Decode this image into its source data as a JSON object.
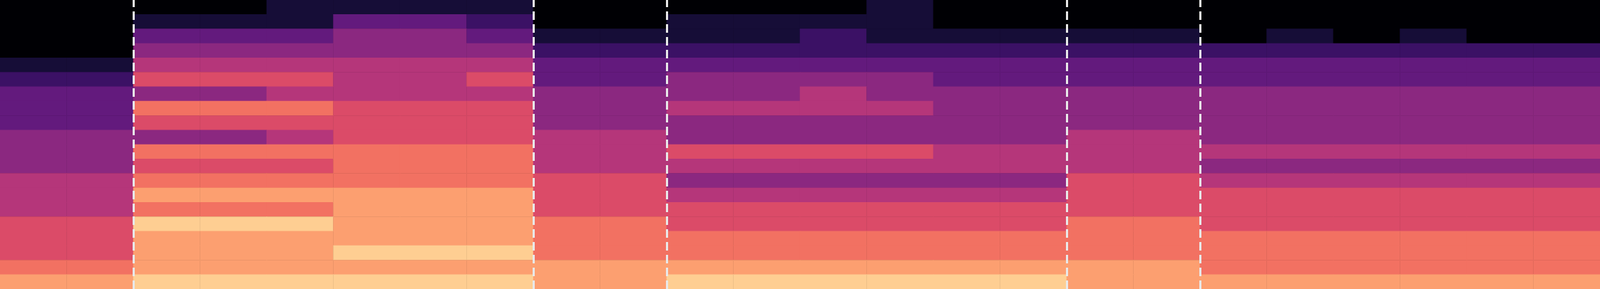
{
  "chart_data": {
    "type": "heatmap",
    "xlim": [
      0,
      24
    ],
    "ylim": [
      0,
      20
    ],
    "tick_labels": false,
    "grid": false,
    "markers": [
      2,
      8,
      10,
      16,
      18
    ],
    "color_range": [
      0,
      10
    ],
    "cells": [
      [
        0,
        0,
        0,
        0,
        1,
        1,
        1,
        1,
        0,
        0,
        0,
        0,
        0,
        1,
        0,
        0,
        0,
        0,
        0,
        0,
        0,
        0,
        0,
        0
      ],
      [
        0,
        0,
        1,
        1,
        1,
        3,
        3,
        2,
        0,
        0,
        1,
        1,
        1,
        1,
        0,
        0,
        0,
        0,
        0,
        0,
        0,
        0,
        0,
        0
      ],
      [
        0,
        0,
        3,
        3,
        3,
        4,
        4,
        3,
        1,
        1,
        1,
        1,
        2,
        1,
        1,
        1,
        1,
        1,
        0,
        1,
        0,
        1,
        0,
        0
      ],
      [
        0,
        0,
        4,
        4,
        4,
        4,
        4,
        4,
        2,
        2,
        2,
        2,
        2,
        2,
        2,
        2,
        2,
        2,
        2,
        2,
        2,
        2,
        2,
        2
      ],
      [
        1,
        1,
        5,
        5,
        5,
        5,
        5,
        5,
        3,
        3,
        3,
        3,
        3,
        3,
        3,
        3,
        3,
        3,
        3,
        3,
        3,
        3,
        3,
        3
      ],
      [
        2,
        2,
        6,
        6,
        6,
        5,
        5,
        6,
        3,
        3,
        4,
        4,
        4,
        4,
        3,
        3,
        3,
        3,
        3,
        3,
        3,
        3,
        3,
        3
      ],
      [
        3,
        3,
        4,
        4,
        5,
        5,
        5,
        5,
        4,
        4,
        4,
        4,
        5,
        4,
        4,
        4,
        4,
        4,
        4,
        4,
        4,
        4,
        4,
        4
      ],
      [
        3,
        3,
        7,
        7,
        7,
        6,
        6,
        6,
        4,
        4,
        5,
        5,
        5,
        5,
        4,
        4,
        4,
        4,
        4,
        4,
        4,
        4,
        4,
        4
      ],
      [
        3,
        3,
        6,
        6,
        6,
        6,
        6,
        6,
        4,
        4,
        4,
        4,
        4,
        4,
        4,
        4,
        4,
        4,
        4,
        4,
        4,
        4,
        4,
        4
      ],
      [
        4,
        4,
        4,
        4,
        5,
        6,
        6,
        6,
        5,
        5,
        4,
        4,
        4,
        4,
        4,
        4,
        5,
        5,
        4,
        4,
        4,
        4,
        4,
        4
      ],
      [
        4,
        4,
        7,
        7,
        7,
        7,
        7,
        7,
        5,
        5,
        6,
        6,
        6,
        6,
        5,
        5,
        5,
        5,
        5,
        5,
        5,
        5,
        5,
        5
      ],
      [
        4,
        4,
        6,
        6,
        6,
        7,
        7,
        7,
        5,
        5,
        5,
        5,
        5,
        5,
        5,
        5,
        5,
        5,
        4,
        4,
        4,
        4,
        4,
        4
      ],
      [
        5,
        5,
        7,
        7,
        7,
        7,
        7,
        7,
        6,
        6,
        4,
        4,
        4,
        4,
        4,
        4,
        6,
        6,
        5,
        5,
        5,
        5,
        5,
        5
      ],
      [
        5,
        5,
        8,
        8,
        8,
        8,
        8,
        8,
        6,
        6,
        5,
        5,
        5,
        5,
        5,
        5,
        6,
        6,
        6,
        6,
        6,
        6,
        6,
        6
      ],
      [
        5,
        5,
        7,
        7,
        7,
        8,
        8,
        8,
        6,
        6,
        6,
        6,
        6,
        6,
        6,
        6,
        6,
        6,
        6,
        6,
        6,
        6,
        6,
        6
      ],
      [
        6,
        6,
        9,
        9,
        9,
        8,
        8,
        8,
        7,
        7,
        6,
        6,
        6,
        6,
        6,
        6,
        7,
        7,
        6,
        6,
        6,
        6,
        6,
        6
      ],
      [
        6,
        6,
        8,
        8,
        8,
        8,
        8,
        8,
        7,
        7,
        7,
        7,
        7,
        7,
        7,
        7,
        7,
        7,
        7,
        7,
        7,
        7,
        7,
        7
      ],
      [
        6,
        6,
        8,
        8,
        8,
        9,
        9,
        9,
        7,
        7,
        7,
        7,
        7,
        7,
        7,
        7,
        7,
        7,
        7,
        7,
        7,
        7,
        7,
        7
      ],
      [
        7,
        7,
        8,
        8,
        8,
        8,
        8,
        8,
        8,
        8,
        8,
        8,
        8,
        8,
        8,
        8,
        8,
        8,
        7,
        7,
        7,
        7,
        7,
        7
      ],
      [
        8,
        8,
        9,
        9,
        9,
        9,
        9,
        9,
        8,
        8,
        9,
        9,
        9,
        9,
        9,
        9,
        8,
        8,
        8,
        8,
        8,
        8,
        8,
        8
      ]
    ]
  }
}
